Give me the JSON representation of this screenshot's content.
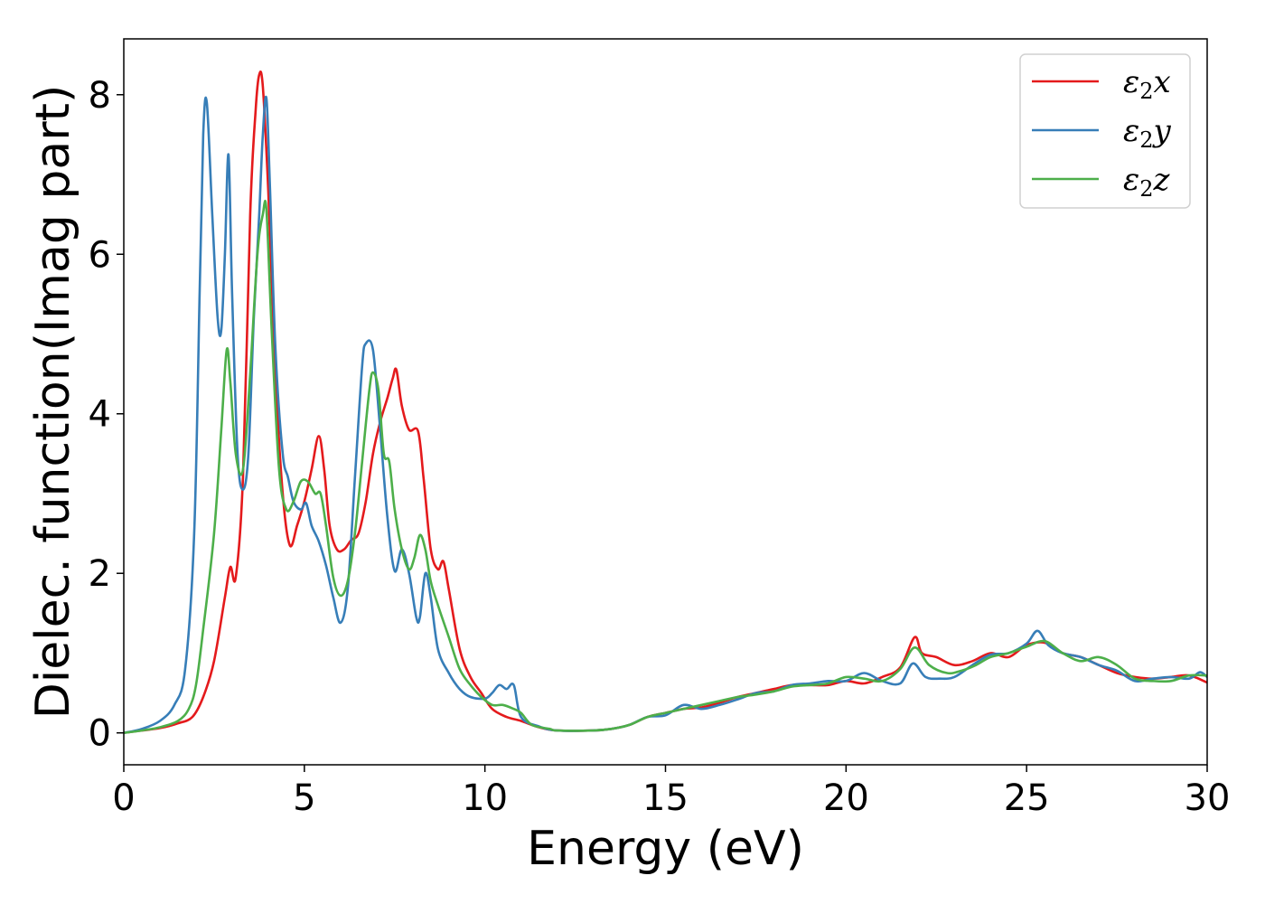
{
  "chart_data": {
    "type": "line",
    "xlabel": "Energy (eV)",
    "ylabel": "Dielec. function(Imag part)",
    "xlim": [
      0,
      30
    ],
    "ylim": [
      -0.4,
      8.7
    ],
    "xticks": [
      0,
      5,
      10,
      15,
      20,
      25,
      30
    ],
    "yticks": [
      0,
      2,
      4,
      6,
      8
    ],
    "grid": false,
    "legend_position": "top-right",
    "series": [
      {
        "name": "ε₂x",
        "legend": {
          "base": "ε",
          "sub": "2",
          "axis": "x"
        },
        "color": "#e41a1c",
        "points": [
          [
            0,
            0
          ],
          [
            0.5,
            0.03
          ],
          [
            1.0,
            0.06
          ],
          [
            1.5,
            0.12
          ],
          [
            1.9,
            0.2
          ],
          [
            2.2,
            0.45
          ],
          [
            2.5,
            0.9
          ],
          [
            2.8,
            1.7
          ],
          [
            2.95,
            2.08
          ],
          [
            3.1,
            1.95
          ],
          [
            3.3,
            3.2
          ],
          [
            3.5,
            6.5
          ],
          [
            3.65,
            7.8
          ],
          [
            3.75,
            8.25
          ],
          [
            3.85,
            8.1
          ],
          [
            4.0,
            6.8
          ],
          [
            4.2,
            4.5
          ],
          [
            4.4,
            3.0
          ],
          [
            4.6,
            2.35
          ],
          [
            4.8,
            2.6
          ],
          [
            5.0,
            2.9
          ],
          [
            5.2,
            3.3
          ],
          [
            5.4,
            3.72
          ],
          [
            5.55,
            3.3
          ],
          [
            5.7,
            2.6
          ],
          [
            5.9,
            2.3
          ],
          [
            6.1,
            2.3
          ],
          [
            6.3,
            2.42
          ],
          [
            6.5,
            2.5
          ],
          [
            6.7,
            2.9
          ],
          [
            6.9,
            3.5
          ],
          [
            7.1,
            3.9
          ],
          [
            7.3,
            4.2
          ],
          [
            7.45,
            4.45
          ],
          [
            7.55,
            4.55
          ],
          [
            7.7,
            4.1
          ],
          [
            7.9,
            3.8
          ],
          [
            8.15,
            3.78
          ],
          [
            8.3,
            3.2
          ],
          [
            8.5,
            2.3
          ],
          [
            8.7,
            2.05
          ],
          [
            8.85,
            2.15
          ],
          [
            9.0,
            1.8
          ],
          [
            9.3,
            1.05
          ],
          [
            9.6,
            0.7
          ],
          [
            9.9,
            0.5
          ],
          [
            10.2,
            0.3
          ],
          [
            10.6,
            0.2
          ],
          [
            11.0,
            0.15
          ],
          [
            11.5,
            0.07
          ],
          [
            12,
            0.03
          ],
          [
            13,
            0.03
          ],
          [
            13.5,
            0.05
          ],
          [
            14,
            0.1
          ],
          [
            14.5,
            0.2
          ],
          [
            15,
            0.25
          ],
          [
            15.5,
            0.3
          ],
          [
            16,
            0.32
          ],
          [
            16.5,
            0.38
          ],
          [
            17,
            0.45
          ],
          [
            17.5,
            0.5
          ],
          [
            18,
            0.55
          ],
          [
            18.5,
            0.6
          ],
          [
            19,
            0.6
          ],
          [
            19.5,
            0.6
          ],
          [
            20,
            0.65
          ],
          [
            20.5,
            0.62
          ],
          [
            21,
            0.7
          ],
          [
            21.5,
            0.82
          ],
          [
            21.9,
            1.2
          ],
          [
            22.1,
            1.0
          ],
          [
            22.5,
            0.95
          ],
          [
            23,
            0.85
          ],
          [
            23.5,
            0.9
          ],
          [
            24,
            1.0
          ],
          [
            24.5,
            0.95
          ],
          [
            25,
            1.1
          ],
          [
            25.5,
            1.13
          ],
          [
            26,
            1.0
          ],
          [
            26.5,
            0.95
          ],
          [
            27,
            0.85
          ],
          [
            27.5,
            0.75
          ],
          [
            28,
            0.7
          ],
          [
            28.5,
            0.68
          ],
          [
            29,
            0.7
          ],
          [
            29.5,
            0.72
          ],
          [
            30,
            0.63
          ]
        ]
      },
      {
        "name": "ε₂y",
        "legend": {
          "base": "ε",
          "sub": "2",
          "axis": "y"
        },
        "color": "#377eb8",
        "points": [
          [
            0,
            0
          ],
          [
            0.5,
            0.05
          ],
          [
            1.0,
            0.15
          ],
          [
            1.4,
            0.35
          ],
          [
            1.7,
            0.8
          ],
          [
            1.95,
            2.5
          ],
          [
            2.1,
            5.5
          ],
          [
            2.2,
            7.5
          ],
          [
            2.3,
            7.9
          ],
          [
            2.45,
            6.5
          ],
          [
            2.6,
            5.2
          ],
          [
            2.7,
            5.05
          ],
          [
            2.8,
            6.0
          ],
          [
            2.9,
            7.25
          ],
          [
            3.0,
            5.5
          ],
          [
            3.15,
            3.5
          ],
          [
            3.3,
            3.05
          ],
          [
            3.45,
            3.5
          ],
          [
            3.6,
            5.2
          ],
          [
            3.75,
            6.5
          ],
          [
            3.85,
            7.5
          ],
          [
            3.95,
            7.95
          ],
          [
            4.05,
            6.8
          ],
          [
            4.2,
            4.8
          ],
          [
            4.4,
            3.5
          ],
          [
            4.55,
            3.2
          ],
          [
            4.7,
            2.9
          ],
          [
            4.9,
            2.8
          ],
          [
            5.05,
            2.88
          ],
          [
            5.2,
            2.6
          ],
          [
            5.4,
            2.4
          ],
          [
            5.6,
            2.1
          ],
          [
            5.8,
            1.7
          ],
          [
            6.0,
            1.38
          ],
          [
            6.2,
            1.8
          ],
          [
            6.4,
            3.2
          ],
          [
            6.6,
            4.6
          ],
          [
            6.7,
            4.88
          ],
          [
            6.9,
            4.8
          ],
          [
            7.1,
            3.8
          ],
          [
            7.3,
            2.7
          ],
          [
            7.5,
            2.03
          ],
          [
            7.7,
            2.3
          ],
          [
            7.9,
            2.0
          ],
          [
            8.1,
            1.45
          ],
          [
            8.2,
            1.45
          ],
          [
            8.35,
            2.0
          ],
          [
            8.5,
            1.7
          ],
          [
            8.7,
            1.05
          ],
          [
            9.0,
            0.75
          ],
          [
            9.3,
            0.55
          ],
          [
            9.6,
            0.45
          ],
          [
            10.0,
            0.43
          ],
          [
            10.2,
            0.5
          ],
          [
            10.4,
            0.6
          ],
          [
            10.6,
            0.55
          ],
          [
            10.8,
            0.6
          ],
          [
            11.0,
            0.2
          ],
          [
            11.5,
            0.08
          ],
          [
            12,
            0.03
          ],
          [
            13,
            0.03
          ],
          [
            13.5,
            0.05
          ],
          [
            14,
            0.1
          ],
          [
            14.5,
            0.2
          ],
          [
            15,
            0.22
          ],
          [
            15.5,
            0.35
          ],
          [
            16,
            0.3
          ],
          [
            16.5,
            0.35
          ],
          [
            17,
            0.42
          ],
          [
            17.5,
            0.5
          ],
          [
            18,
            0.52
          ],
          [
            18.5,
            0.6
          ],
          [
            19,
            0.62
          ],
          [
            19.5,
            0.65
          ],
          [
            20,
            0.65
          ],
          [
            20.5,
            0.75
          ],
          [
            21,
            0.65
          ],
          [
            21.5,
            0.62
          ],
          [
            21.85,
            0.87
          ],
          [
            22.2,
            0.7
          ],
          [
            22.6,
            0.68
          ],
          [
            23,
            0.7
          ],
          [
            23.5,
            0.85
          ],
          [
            24,
            0.98
          ],
          [
            24.5,
            1.0
          ],
          [
            25,
            1.12
          ],
          [
            25.3,
            1.28
          ],
          [
            25.6,
            1.1
          ],
          [
            26,
            1.0
          ],
          [
            26.5,
            0.95
          ],
          [
            27,
            0.85
          ],
          [
            27.5,
            0.78
          ],
          [
            28,
            0.65
          ],
          [
            28.5,
            0.68
          ],
          [
            29,
            0.7
          ],
          [
            29.5,
            0.68
          ],
          [
            29.8,
            0.76
          ],
          [
            30,
            0.7
          ]
        ]
      },
      {
        "name": "ε₂z",
        "legend": {
          "base": "ε",
          "sub": "2",
          "axis": "z"
        },
        "color": "#4daf4a",
        "points": [
          [
            0,
            0
          ],
          [
            0.5,
            0.03
          ],
          [
            1.0,
            0.07
          ],
          [
            1.5,
            0.15
          ],
          [
            1.8,
            0.3
          ],
          [
            2.0,
            0.6
          ],
          [
            2.2,
            1.3
          ],
          [
            2.5,
            2.5
          ],
          [
            2.7,
            3.8
          ],
          [
            2.85,
            4.8
          ],
          [
            2.95,
            4.4
          ],
          [
            3.1,
            3.5
          ],
          [
            3.3,
            3.3
          ],
          [
            3.5,
            4.5
          ],
          [
            3.7,
            6.0
          ],
          [
            3.85,
            6.5
          ],
          [
            3.95,
            6.55
          ],
          [
            4.1,
            5.0
          ],
          [
            4.3,
            3.3
          ],
          [
            4.5,
            2.8
          ],
          [
            4.7,
            2.9
          ],
          [
            4.9,
            3.15
          ],
          [
            5.1,
            3.15
          ],
          [
            5.3,
            3.0
          ],
          [
            5.45,
            3.0
          ],
          [
            5.6,
            2.6
          ],
          [
            5.8,
            1.95
          ],
          [
            6.0,
            1.72
          ],
          [
            6.2,
            1.9
          ],
          [
            6.4,
            2.5
          ],
          [
            6.6,
            3.4
          ],
          [
            6.8,
            4.3
          ],
          [
            6.9,
            4.52
          ],
          [
            7.05,
            4.3
          ],
          [
            7.2,
            3.5
          ],
          [
            7.35,
            3.4
          ],
          [
            7.5,
            2.8
          ],
          [
            7.7,
            2.3
          ],
          [
            7.9,
            2.05
          ],
          [
            8.05,
            2.2
          ],
          [
            8.2,
            2.48
          ],
          [
            8.35,
            2.3
          ],
          [
            8.5,
            1.9
          ],
          [
            8.7,
            1.6
          ],
          [
            9.0,
            1.2
          ],
          [
            9.3,
            0.8
          ],
          [
            9.6,
            0.6
          ],
          [
            9.9,
            0.45
          ],
          [
            10.2,
            0.35
          ],
          [
            10.5,
            0.35
          ],
          [
            10.8,
            0.3
          ],
          [
            11.0,
            0.25
          ],
          [
            11.3,
            0.1
          ],
          [
            11.8,
            0.05
          ],
          [
            12,
            0.03
          ],
          [
            13,
            0.03
          ],
          [
            13.5,
            0.05
          ],
          [
            14,
            0.1
          ],
          [
            14.5,
            0.2
          ],
          [
            15,
            0.25
          ],
          [
            15.5,
            0.3
          ],
          [
            16,
            0.35
          ],
          [
            16.5,
            0.4
          ],
          [
            17,
            0.45
          ],
          [
            17.5,
            0.48
          ],
          [
            18,
            0.52
          ],
          [
            18.5,
            0.58
          ],
          [
            19,
            0.6
          ],
          [
            19.5,
            0.62
          ],
          [
            20,
            0.7
          ],
          [
            20.5,
            0.68
          ],
          [
            21,
            0.65
          ],
          [
            21.5,
            0.8
          ],
          [
            21.9,
            1.07
          ],
          [
            22.3,
            0.85
          ],
          [
            22.8,
            0.75
          ],
          [
            23.2,
            0.78
          ],
          [
            23.6,
            0.85
          ],
          [
            24,
            0.95
          ],
          [
            24.5,
            1.0
          ],
          [
            25,
            1.08
          ],
          [
            25.5,
            1.15
          ],
          [
            26,
            1.0
          ],
          [
            26.5,
            0.9
          ],
          [
            27,
            0.95
          ],
          [
            27.5,
            0.85
          ],
          [
            28,
            0.68
          ],
          [
            28.5,
            0.65
          ],
          [
            29,
            0.65
          ],
          [
            29.5,
            0.72
          ],
          [
            30,
            0.72
          ]
        ]
      }
    ]
  }
}
